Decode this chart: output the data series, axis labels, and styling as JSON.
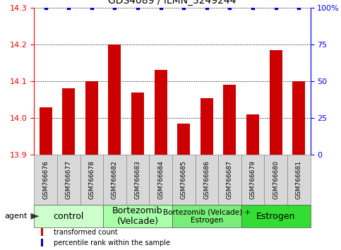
{
  "title": "GDS4089 / ILMN_3249244",
  "samples": [
    "GSM766676",
    "GSM766677",
    "GSM766678",
    "GSM766682",
    "GSM766683",
    "GSM766684",
    "GSM766685",
    "GSM766686",
    "GSM766687",
    "GSM766679",
    "GSM766680",
    "GSM766681"
  ],
  "bar_values": [
    14.03,
    14.08,
    14.1,
    14.2,
    14.07,
    14.13,
    13.985,
    14.055,
    14.09,
    14.01,
    14.185,
    14.1
  ],
  "percentile_values": [
    100,
    100,
    100,
    100,
    100,
    100,
    100,
    100,
    100,
    100,
    100,
    100
  ],
  "bar_color": "#cc0000",
  "percentile_color": "#0000cc",
  "ylim_left": [
    13.9,
    14.3
  ],
  "ylim_right": [
    0,
    100
  ],
  "yticks_left": [
    13.9,
    14.0,
    14.1,
    14.2,
    14.3
  ],
  "yticks_right": [
    0,
    25,
    50,
    75,
    100
  ],
  "groups": [
    {
      "label": "control",
      "start": 0,
      "end": 2,
      "color": "#ccffcc"
    },
    {
      "label": "Bortezomib\n(Velcade)",
      "start": 3,
      "end": 5,
      "color": "#aaffaa"
    },
    {
      "label": "Bortezomib (Velcade) +\nEstrogen",
      "start": 6,
      "end": 8,
      "color": "#77ee77"
    },
    {
      "label": "Estrogen",
      "start": 9,
      "end": 11,
      "color": "#33dd33"
    }
  ],
  "agent_label": "agent",
  "legend_items": [
    {
      "color": "#cc0000",
      "label": "transformed count"
    },
    {
      "color": "#0000cc",
      "label": "percentile rank within the sample"
    }
  ],
  "background_color": "#ffffff",
  "bar_width": 0.55,
  "sample_box_color": "#d8d8d8",
  "group_font_sizes": [
    9,
    9,
    7.5,
    9
  ],
  "title_fontsize": 10
}
